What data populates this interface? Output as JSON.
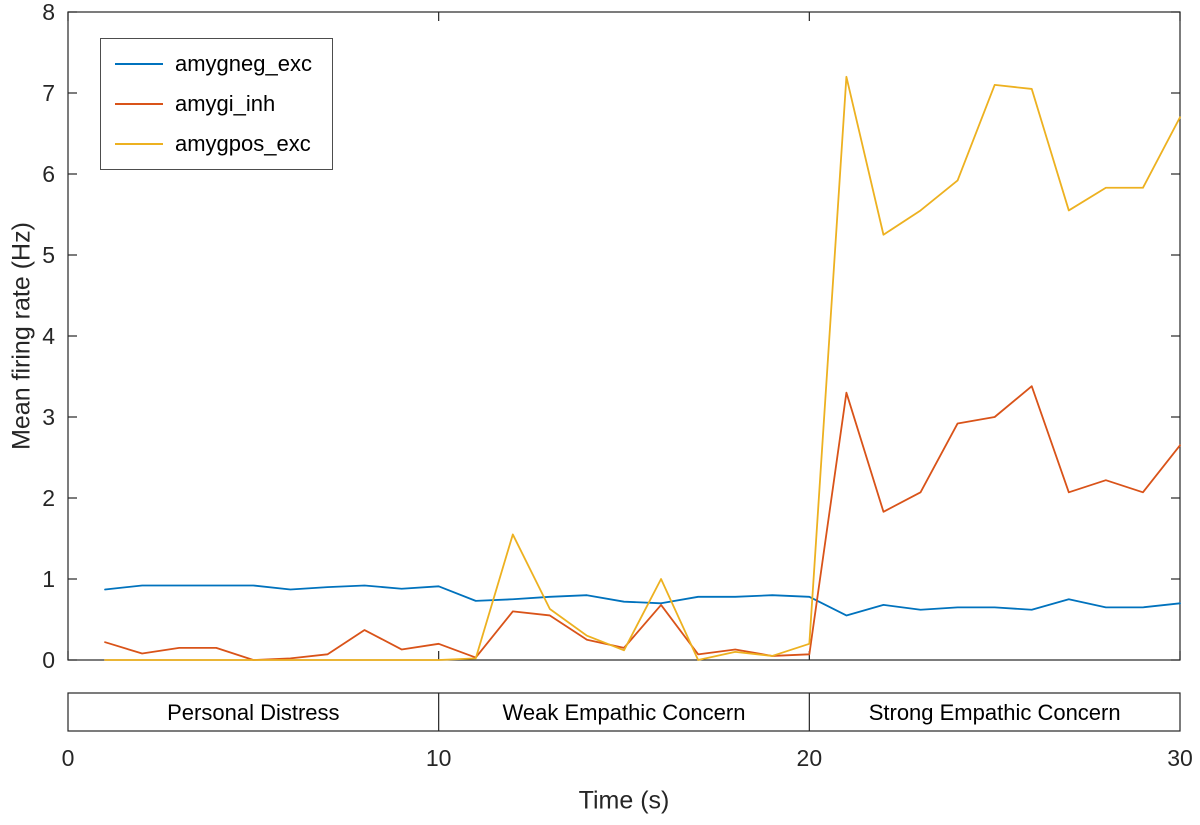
{
  "chart_data": {
    "type": "line",
    "title": "",
    "xlabel": "Time (s)",
    "ylabel": "Mean firing rate (Hz)",
    "xlim": [
      0,
      30
    ],
    "ylim": [
      0,
      8
    ],
    "xticks": [
      0,
      10,
      20,
      30
    ],
    "yticks": [
      0,
      1,
      2,
      3,
      4,
      5,
      6,
      7,
      8
    ],
    "grid": false,
    "legend_position": "top-left",
    "x": [
      1,
      2,
      3,
      4,
      5,
      6,
      7,
      8,
      9,
      10,
      11,
      12,
      13,
      14,
      15,
      16,
      17,
      18,
      19,
      20,
      21,
      22,
      23,
      24,
      25,
      26,
      27,
      28,
      29,
      30
    ],
    "series": [
      {
        "name": "amygneg_exc",
        "color": "#0072BD",
        "values": [
          0.87,
          0.92,
          0.92,
          0.92,
          0.92,
          0.87,
          0.9,
          0.92,
          0.88,
          0.91,
          0.73,
          0.75,
          0.78,
          0.8,
          0.72,
          0.7,
          0.78,
          0.78,
          0.8,
          0.78,
          0.55,
          0.68,
          0.62,
          0.65,
          0.65,
          0.62,
          0.75,
          0.65,
          0.65,
          0.7
        ]
      },
      {
        "name": "amygi_inh",
        "color": "#D95319",
        "values": [
          0.22,
          0.08,
          0.15,
          0.15,
          0.0,
          0.02,
          0.07,
          0.37,
          0.13,
          0.2,
          0.03,
          0.6,
          0.55,
          0.25,
          0.15,
          0.68,
          0.07,
          0.13,
          0.05,
          0.07,
          3.3,
          1.83,
          2.07,
          2.92,
          3.0,
          3.38,
          2.07,
          2.22,
          2.07,
          2.65
        ]
      },
      {
        "name": "amygpos_exc",
        "color": "#EDB120",
        "values": [
          0.0,
          0.0,
          0.0,
          0.0,
          0.0,
          0.0,
          0.0,
          0.0,
          0.0,
          0.0,
          0.02,
          1.55,
          0.63,
          0.3,
          0.12,
          1.0,
          0.0,
          0.1,
          0.05,
          0.2,
          7.2,
          5.25,
          5.55,
          5.92,
          7.1,
          7.05,
          5.55,
          5.83,
          5.83,
          6.7
        ]
      }
    ],
    "phases": [
      {
        "label": "Personal Distress",
        "start": 0,
        "end": 10
      },
      {
        "label": "Weak Empathic Concern",
        "start": 10,
        "end": 20
      },
      {
        "label": "Strong Empathic Concern",
        "start": 20,
        "end": 30
      }
    ]
  }
}
